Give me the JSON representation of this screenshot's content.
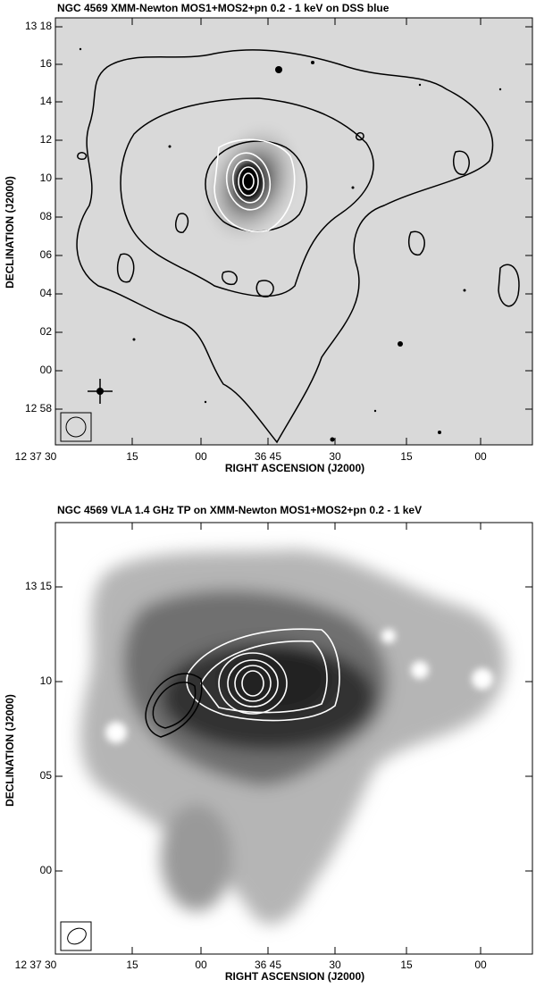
{
  "panels": [
    {
      "title": "NGC 4569 XMM-Newton MOS1+MOS2+pn 0.2 - 1 keV on DSS blue",
      "xlabel": "RIGHT ASCENSION (J2000)",
      "ylabel": "DECLINATION (J2000)",
      "xticks": [
        "12 37 30",
        "15",
        "00",
        "36 45",
        "30",
        "15",
        "00"
      ],
      "yticks": [
        "13 18",
        "16",
        "14",
        "12",
        "10",
        "08",
        "06",
        "04",
        "02",
        "00",
        "12 58"
      ]
    },
    {
      "title": "NGC 4569 VLA 1.4 GHz TP on XMM-Newton MOS1+MOS2+pn 0.2 - 1 keV",
      "xlabel": "RIGHT ASCENSION (J2000)",
      "ylabel": "DECLINATION (J2000)",
      "xticks": [
        "12 37 30",
        "15",
        "00",
        "36 45",
        "30",
        "15",
        "00"
      ],
      "yticks": [
        "13 15",
        "10",
        "05",
        "00"
      ]
    }
  ]
}
